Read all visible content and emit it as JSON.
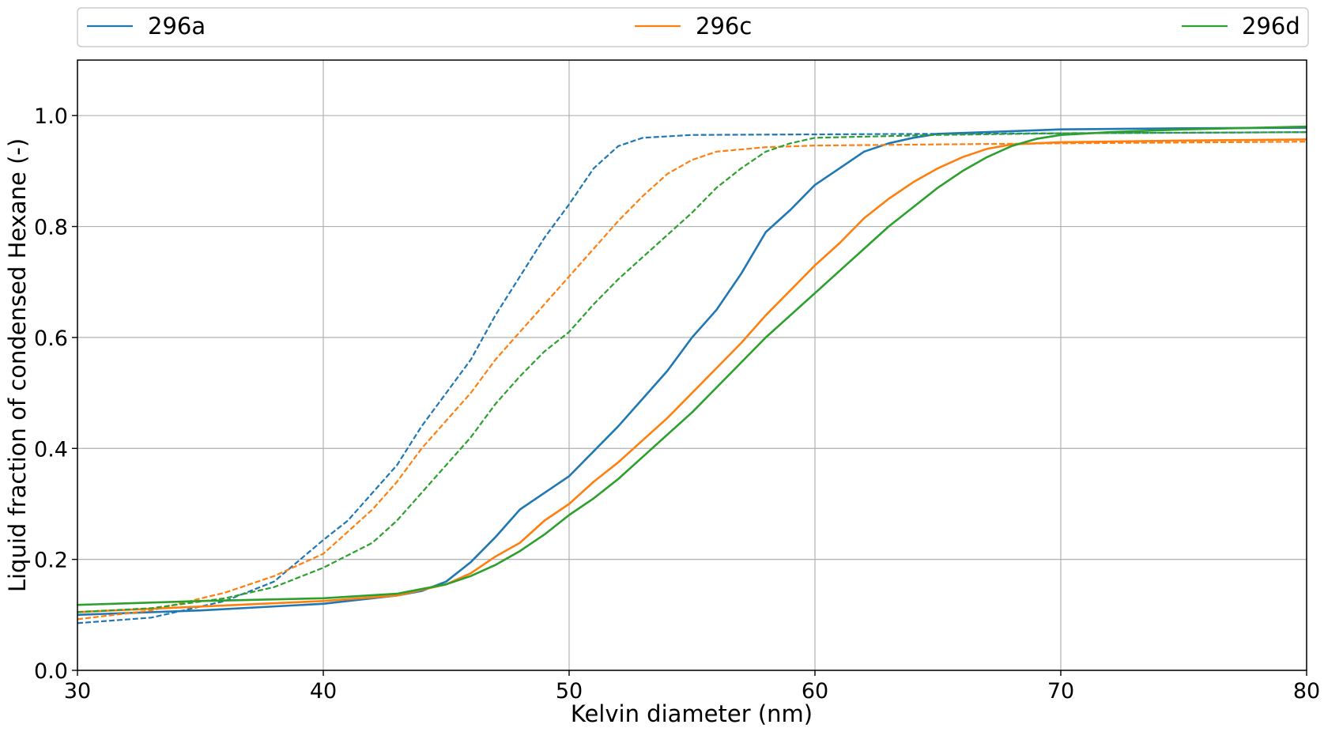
{
  "chart_data": {
    "type": "line",
    "xlabel": "Kelvin diameter (nm)",
    "ylabel": "Liquid fraction of condensed Hexane (-)",
    "xlim": [
      30,
      80
    ],
    "ylim": [
      0.0,
      1.1
    ],
    "x_ticks": [
      "30",
      "40",
      "50",
      "60",
      "70",
      "80"
    ],
    "y_ticks": [
      "0.0",
      "0.2",
      "0.4",
      "0.6",
      "0.8",
      "1.0"
    ],
    "grid": true,
    "legend_position": "top, above plot, spread horizontally",
    "legend": [
      "296a",
      "296c",
      "296d"
    ],
    "series": [
      {
        "name": "296a",
        "style": "solid",
        "color": "#1f77b4",
        "points": [
          [
            30,
            0.1
          ],
          [
            35,
            0.108
          ],
          [
            40,
            0.12
          ],
          [
            43,
            0.135
          ],
          [
            44,
            0.143
          ],
          [
            45,
            0.16
          ],
          [
            46,
            0.195
          ],
          [
            47,
            0.24
          ],
          [
            48,
            0.29
          ],
          [
            49,
            0.32
          ],
          [
            50,
            0.35
          ],
          [
            51,
            0.395
          ],
          [
            52,
            0.44
          ],
          [
            53,
            0.49
          ],
          [
            54,
            0.54
          ],
          [
            55,
            0.6
          ],
          [
            56,
            0.65
          ],
          [
            57,
            0.715
          ],
          [
            58,
            0.79
          ],
          [
            59,
            0.83
          ],
          [
            60,
            0.875
          ],
          [
            61,
            0.905
          ],
          [
            62,
            0.935
          ],
          [
            63,
            0.95
          ],
          [
            64,
            0.96
          ],
          [
            65,
            0.967
          ],
          [
            70,
            0.975
          ],
          [
            75,
            0.977
          ],
          [
            80,
            0.978
          ]
        ]
      },
      {
        "name": "296a",
        "style": "dashed",
        "color": "#1f77b4",
        "points": [
          [
            30,
            0.085
          ],
          [
            33,
            0.095
          ],
          [
            36,
            0.125
          ],
          [
            38,
            0.16
          ],
          [
            40,
            0.235
          ],
          [
            41,
            0.27
          ],
          [
            42,
            0.32
          ],
          [
            43,
            0.37
          ],
          [
            44,
            0.44
          ],
          [
            45,
            0.5
          ],
          [
            46,
            0.56
          ],
          [
            47,
            0.64
          ],
          [
            48,
            0.71
          ],
          [
            49,
            0.78
          ],
          [
            50,
            0.84
          ],
          [
            51,
            0.905
          ],
          [
            52,
            0.945
          ],
          [
            53,
            0.96
          ],
          [
            55,
            0.965
          ],
          [
            60,
            0.966
          ],
          [
            70,
            0.968
          ],
          [
            80,
            0.97
          ]
        ]
      },
      {
        "name": "296c",
        "style": "solid",
        "color": "#ff7f0e",
        "points": [
          [
            30,
            0.105
          ],
          [
            35,
            0.115
          ],
          [
            40,
            0.125
          ],
          [
            43,
            0.135
          ],
          [
            45,
            0.155
          ],
          [
            46,
            0.175
          ],
          [
            47,
            0.205
          ],
          [
            48,
            0.23
          ],
          [
            49,
            0.27
          ],
          [
            50,
            0.3
          ],
          [
            51,
            0.34
          ],
          [
            52,
            0.375
          ],
          [
            53,
            0.415
          ],
          [
            54,
            0.455
          ],
          [
            55,
            0.5
          ],
          [
            56,
            0.545
          ],
          [
            57,
            0.59
          ],
          [
            58,
            0.64
          ],
          [
            59,
            0.685
          ],
          [
            60,
            0.73
          ],
          [
            61,
            0.77
          ],
          [
            62,
            0.815
          ],
          [
            63,
            0.85
          ],
          [
            64,
            0.88
          ],
          [
            65,
            0.905
          ],
          [
            66,
            0.925
          ],
          [
            67,
            0.94
          ],
          [
            68,
            0.948
          ],
          [
            70,
            0.952
          ],
          [
            75,
            0.955
          ],
          [
            80,
            0.957
          ]
        ]
      },
      {
        "name": "296c",
        "style": "dashed",
        "color": "#ff7f0e",
        "points": [
          [
            30,
            0.092
          ],
          [
            33,
            0.108
          ],
          [
            36,
            0.14
          ],
          [
            38,
            0.17
          ],
          [
            40,
            0.21
          ],
          [
            42,
            0.29
          ],
          [
            43,
            0.34
          ],
          [
            44,
            0.4
          ],
          [
            45,
            0.45
          ],
          [
            46,
            0.5
          ],
          [
            47,
            0.56
          ],
          [
            48,
            0.61
          ],
          [
            49,
            0.66
          ],
          [
            50,
            0.71
          ],
          [
            51,
            0.76
          ],
          [
            52,
            0.81
          ],
          [
            53,
            0.855
          ],
          [
            54,
            0.895
          ],
          [
            55,
            0.92
          ],
          [
            56,
            0.935
          ],
          [
            58,
            0.943
          ],
          [
            60,
            0.946
          ],
          [
            70,
            0.95
          ],
          [
            80,
            0.953
          ]
        ]
      },
      {
        "name": "296d",
        "style": "solid",
        "color": "#2ca02c",
        "points": [
          [
            30,
            0.118
          ],
          [
            35,
            0.125
          ],
          [
            40,
            0.13
          ],
          [
            43,
            0.138
          ],
          [
            45,
            0.155
          ],
          [
            46,
            0.17
          ],
          [
            47,
            0.19
          ],
          [
            48,
            0.215
          ],
          [
            49,
            0.245
          ],
          [
            50,
            0.28
          ],
          [
            51,
            0.31
          ],
          [
            52,
            0.345
          ],
          [
            53,
            0.385
          ],
          [
            54,
            0.425
          ],
          [
            55,
            0.465
          ],
          [
            56,
            0.51
          ],
          [
            57,
            0.555
          ],
          [
            58,
            0.6
          ],
          [
            59,
            0.64
          ],
          [
            60,
            0.68
          ],
          [
            61,
            0.72
          ],
          [
            62,
            0.76
          ],
          [
            63,
            0.8
          ],
          [
            64,
            0.835
          ],
          [
            65,
            0.87
          ],
          [
            66,
            0.9
          ],
          [
            67,
            0.925
          ],
          [
            68,
            0.945
          ],
          [
            69,
            0.958
          ],
          [
            70,
            0.965
          ],
          [
            72,
            0.97
          ],
          [
            75,
            0.975
          ],
          [
            80,
            0.98
          ]
        ]
      },
      {
        "name": "296d",
        "style": "dashed",
        "color": "#2ca02c",
        "points": [
          [
            30,
            0.105
          ],
          [
            33,
            0.112
          ],
          [
            36,
            0.13
          ],
          [
            38,
            0.15
          ],
          [
            40,
            0.185
          ],
          [
            42,
            0.23
          ],
          [
            43,
            0.27
          ],
          [
            44,
            0.32
          ],
          [
            45,
            0.37
          ],
          [
            46,
            0.42
          ],
          [
            47,
            0.48
          ],
          [
            48,
            0.53
          ],
          [
            49,
            0.575
          ],
          [
            50,
            0.61
          ],
          [
            51,
            0.66
          ],
          [
            52,
            0.705
          ],
          [
            53,
            0.745
          ],
          [
            54,
            0.785
          ],
          [
            55,
            0.825
          ],
          [
            56,
            0.87
          ],
          [
            57,
            0.905
          ],
          [
            58,
            0.935
          ],
          [
            59,
            0.95
          ],
          [
            60,
            0.96
          ],
          [
            65,
            0.965
          ],
          [
            70,
            0.968
          ],
          [
            80,
            0.97
          ]
        ]
      }
    ]
  }
}
